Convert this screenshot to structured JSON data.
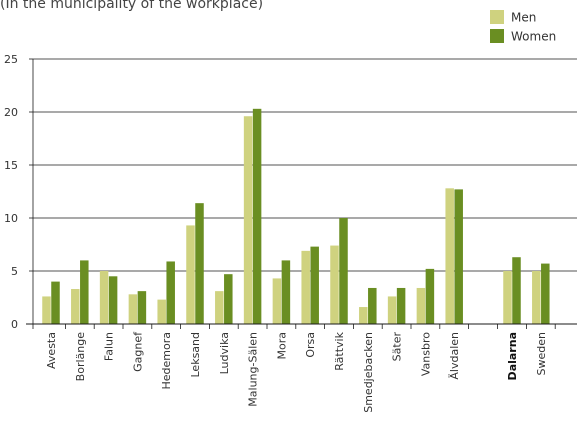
{
  "chart_data": {
    "type": "bar",
    "subtitle": "(In the municipality of the workplace)",
    "categories": [
      "Avesta",
      "Borlänge",
      "Falun",
      "Gagnef",
      "Hedemora",
      "Leksand",
      "Ludvika",
      "Malung-Sälen",
      "Mora",
      "Orsa",
      "Rättvik",
      "Smedjebacken",
      "Säter",
      "Vansbro",
      "Älvdalen",
      "Dalarna",
      "Sweden"
    ],
    "bold_categories": [
      "Dalarna"
    ],
    "series": [
      {
        "name": "Men",
        "color": "#cfd27f",
        "values": [
          2.6,
          3.3,
          5.0,
          2.8,
          2.3,
          9.3,
          3.1,
          19.6,
          4.3,
          6.9,
          7.4,
          1.6,
          2.6,
          3.4,
          12.8,
          5.0,
          5.0
        ]
      },
      {
        "name": "Women",
        "color": "#6a8e22",
        "values": [
          4.0,
          6.0,
          4.5,
          3.1,
          5.9,
          11.4,
          4.7,
          20.3,
          6.0,
          7.3,
          10.0,
          3.4,
          3.4,
          5.2,
          12.7,
          6.3,
          5.7
        ]
      }
    ],
    "y_ticks": [
      "0",
      "5",
      "10",
      "15",
      "20",
      "25"
    ],
    "ylim": [
      0,
      25
    ],
    "grid": true,
    "legend_position": "top-right"
  }
}
